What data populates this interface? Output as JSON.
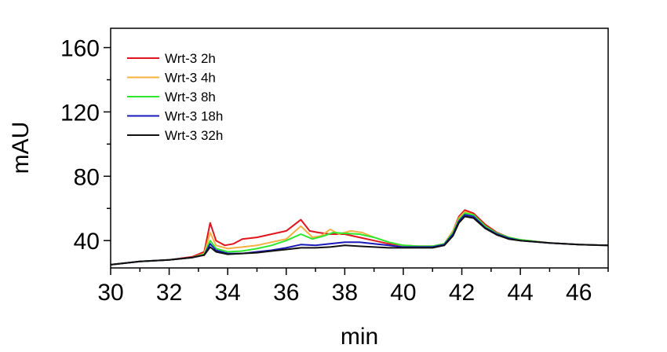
{
  "chart_data": {
    "type": "line",
    "title": "",
    "xlabel": "min",
    "ylabel": "mAU",
    "xlim": [
      30,
      47
    ],
    "ylim": [
      23,
      172
    ],
    "x_ticks": [
      30,
      32,
      34,
      36,
      38,
      40,
      42,
      44,
      46
    ],
    "y_ticks": [
      40,
      80,
      120,
      160
    ],
    "grid": false,
    "legend_position": "top-left",
    "series": [
      {
        "name": "Wrt-3 2h",
        "color": "#e0141e",
        "points": [
          [
            30,
            25
          ],
          [
            31,
            27
          ],
          [
            32,
            28
          ],
          [
            32.8,
            30
          ],
          [
            33.2,
            33
          ],
          [
            33.4,
            51
          ],
          [
            33.6,
            40
          ],
          [
            33.9,
            37
          ],
          [
            34.2,
            38
          ],
          [
            34.5,
            41
          ],
          [
            35,
            42
          ],
          [
            35.5,
            44
          ],
          [
            36,
            46
          ],
          [
            36.5,
            53
          ],
          [
            36.8,
            46
          ],
          [
            37.1,
            45
          ],
          [
            37.5,
            44
          ],
          [
            38,
            44
          ],
          [
            38.5,
            42
          ],
          [
            39,
            40
          ],
          [
            39.5,
            38
          ],
          [
            40,
            37
          ],
          [
            40.5,
            36.5
          ],
          [
            41,
            36.5
          ],
          [
            41.4,
            38
          ],
          [
            41.7,
            46
          ],
          [
            41.9,
            55
          ],
          [
            42.1,
            59
          ],
          [
            42.4,
            57
          ],
          [
            42.8,
            50
          ],
          [
            43.2,
            45
          ],
          [
            43.6,
            42
          ],
          [
            44,
            40.5
          ],
          [
            45,
            38.5
          ],
          [
            46,
            37.5
          ],
          [
            47,
            37
          ]
        ]
      },
      {
        "name": "Wrt-3 4h",
        "color": "#f5b041",
        "points": [
          [
            30,
            25
          ],
          [
            31,
            27
          ],
          [
            32,
            28
          ],
          [
            32.8,
            29.5
          ],
          [
            33.2,
            32
          ],
          [
            33.4,
            45
          ],
          [
            33.6,
            37
          ],
          [
            34,
            35
          ],
          [
            34.5,
            36
          ],
          [
            35,
            37
          ],
          [
            35.5,
            39
          ],
          [
            36,
            41
          ],
          [
            36.5,
            49
          ],
          [
            36.9,
            42
          ],
          [
            37.2,
            43
          ],
          [
            37.5,
            47
          ],
          [
            37.8,
            44
          ],
          [
            38.2,
            46
          ],
          [
            38.6,
            45
          ],
          [
            39,
            42
          ],
          [
            39.5,
            39
          ],
          [
            40,
            37
          ],
          [
            40.5,
            36.5
          ],
          [
            41,
            36.5
          ],
          [
            41.4,
            38
          ],
          [
            41.7,
            46
          ],
          [
            41.9,
            54
          ],
          [
            42.1,
            58
          ],
          [
            42.4,
            56
          ],
          [
            42.8,
            49
          ],
          [
            43.2,
            44.5
          ],
          [
            43.6,
            42
          ],
          [
            44,
            40.5
          ],
          [
            45,
            38.5
          ],
          [
            46,
            37.5
          ],
          [
            47,
            37
          ]
        ]
      },
      {
        "name": "Wrt-3 8h",
        "color": "#2ee82e",
        "points": [
          [
            30,
            25
          ],
          [
            31,
            27
          ],
          [
            32,
            28
          ],
          [
            32.8,
            29.5
          ],
          [
            33.2,
            31.5
          ],
          [
            33.4,
            40
          ],
          [
            33.6,
            35
          ],
          [
            34,
            33
          ],
          [
            34.5,
            33.5
          ],
          [
            35,
            35
          ],
          [
            35.5,
            37
          ],
          [
            36,
            40
          ],
          [
            36.5,
            44
          ],
          [
            36.9,
            41
          ],
          [
            37.3,
            43
          ],
          [
            37.6,
            45
          ],
          [
            38,
            44.5
          ],
          [
            38.5,
            44
          ],
          [
            39,
            42
          ],
          [
            39.5,
            39
          ],
          [
            40,
            37
          ],
          [
            40.5,
            36.5
          ],
          [
            41,
            36.5
          ],
          [
            41.4,
            38
          ],
          [
            41.7,
            45
          ],
          [
            41.9,
            53
          ],
          [
            42.1,
            57
          ],
          [
            42.4,
            56
          ],
          [
            42.8,
            49
          ],
          [
            43.2,
            44.5
          ],
          [
            43.6,
            42
          ],
          [
            44,
            40.5
          ],
          [
            45,
            38.5
          ],
          [
            46,
            37.5
          ],
          [
            47,
            37
          ]
        ]
      },
      {
        "name": "Wrt-3 18h",
        "color": "#1a1ab8",
        "points": [
          [
            30,
            25
          ],
          [
            31,
            27
          ],
          [
            32,
            28
          ],
          [
            32.8,
            29.5
          ],
          [
            33.2,
            31
          ],
          [
            33.4,
            38
          ],
          [
            33.6,
            34
          ],
          [
            34,
            32
          ],
          [
            34.5,
            32
          ],
          [
            35,
            33
          ],
          [
            35.5,
            34
          ],
          [
            36,
            35.5
          ],
          [
            36.5,
            37.5
          ],
          [
            37,
            37
          ],
          [
            37.5,
            38
          ],
          [
            38,
            39
          ],
          [
            38.5,
            39
          ],
          [
            39,
            38
          ],
          [
            39.5,
            37
          ],
          [
            40,
            36
          ],
          [
            40.5,
            36
          ],
          [
            41,
            36
          ],
          [
            41.4,
            37.5
          ],
          [
            41.7,
            44
          ],
          [
            41.9,
            52
          ],
          [
            42.1,
            56
          ],
          [
            42.4,
            55
          ],
          [
            42.8,
            48
          ],
          [
            43.2,
            44
          ],
          [
            43.6,
            41.5
          ],
          [
            44,
            40
          ],
          [
            45,
            38.5
          ],
          [
            46,
            37.5
          ],
          [
            47,
            37
          ]
        ]
      },
      {
        "name": "Wrt-3 32h",
        "color": "#111111",
        "points": [
          [
            30,
            25
          ],
          [
            31,
            27
          ],
          [
            32,
            28
          ],
          [
            32.8,
            29.5
          ],
          [
            33.2,
            31
          ],
          [
            33.4,
            36
          ],
          [
            33.6,
            33
          ],
          [
            34,
            31.5
          ],
          [
            34.5,
            32
          ],
          [
            35,
            32.5
          ],
          [
            35.5,
            33.5
          ],
          [
            36,
            34.5
          ],
          [
            36.5,
            35.5
          ],
          [
            37,
            35.5
          ],
          [
            37.5,
            36
          ],
          [
            38,
            37
          ],
          [
            38.5,
            36.5
          ],
          [
            39,
            36
          ],
          [
            39.5,
            35.5
          ],
          [
            40,
            35.5
          ],
          [
            40.5,
            35.5
          ],
          [
            41,
            35.5
          ],
          [
            41.4,
            37
          ],
          [
            41.7,
            43
          ],
          [
            41.9,
            51
          ],
          [
            42.1,
            55
          ],
          [
            42.4,
            54
          ],
          [
            42.8,
            47.5
          ],
          [
            43.2,
            43.5
          ],
          [
            43.6,
            41
          ],
          [
            44,
            40
          ],
          [
            45,
            38.5
          ],
          [
            46,
            37.5
          ],
          [
            47,
            37
          ]
        ]
      }
    ]
  }
}
